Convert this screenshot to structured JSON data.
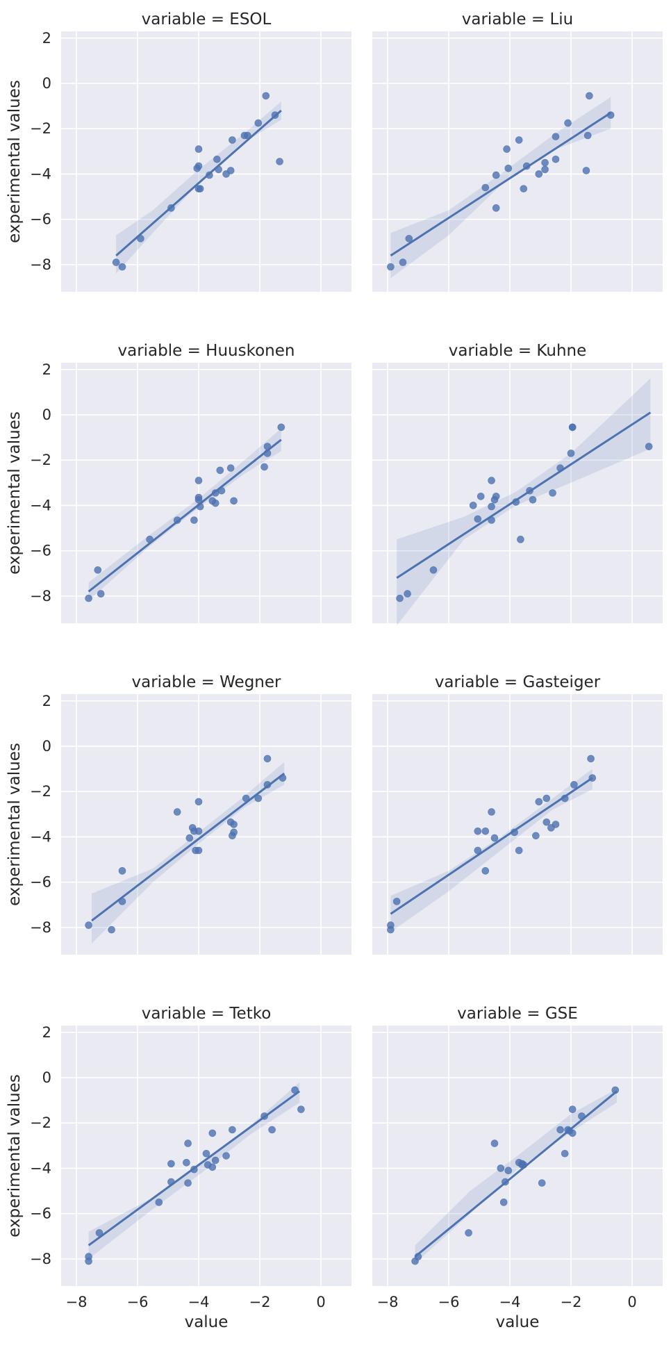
{
  "chart_data": {
    "type": "scatter",
    "layout": "facet-grid",
    "ncols": 2,
    "x_label": "value",
    "y_label": "experimental values",
    "xlim": [
      -8.5,
      1.0
    ],
    "ylim": [
      -9.2,
      2.3
    ],
    "x_ticks": [
      -8,
      -6,
      -4,
      -2,
      0
    ],
    "y_ticks": [
      2,
      0,
      -2,
      -4,
      -6,
      -8
    ],
    "grid": true,
    "color": "#4c72b0",
    "facet_bg": "#eaeaf2",
    "facets": [
      {
        "title": "variable = ESOL",
        "fit": {
          "x": [
            -6.7,
            -1.3
          ],
          "y": [
            -7.6,
            -1.2
          ]
        },
        "ci": {
          "x": [
            -6.7,
            -5.5,
            -4.0,
            -2.5,
            -1.3
          ],
          "lower": [
            -8.4,
            -6.6,
            -4.4,
            -2.6,
            -1.6
          ],
          "upper": [
            -6.7,
            -5.6,
            -3.8,
            -2.2,
            -0.8
          ]
        },
        "points": [
          [
            -6.7,
            -7.9
          ],
          [
            -6.5,
            -8.1
          ],
          [
            -5.9,
            -6.85
          ],
          [
            -4.9,
            -5.5
          ],
          [
            -4.05,
            -3.75
          ],
          [
            -4.0,
            -3.65
          ],
          [
            -4.0,
            -4.65
          ],
          [
            -4.0,
            -2.9
          ],
          [
            -3.65,
            -4.05
          ],
          [
            -3.4,
            -3.35
          ],
          [
            -3.35,
            -3.8
          ],
          [
            -3.1,
            -4.0
          ],
          [
            -2.95,
            -3.85
          ],
          [
            -2.9,
            -2.5
          ],
          [
            -2.5,
            -2.3
          ],
          [
            -2.4,
            -2.3
          ],
          [
            -2.05,
            -1.75
          ],
          [
            -1.8,
            -0.55
          ],
          [
            -1.5,
            -1.4
          ],
          [
            -1.35,
            -3.45
          ],
          [
            -3.95,
            -4.65
          ]
        ]
      },
      {
        "title": "variable = Liu",
        "fit": {
          "x": [
            -7.9,
            -0.7
          ],
          "y": [
            -7.6,
            -1.3
          ]
        },
        "ci": {
          "x": [
            -7.9,
            -6.0,
            -4.3,
            -2.5,
            -0.7
          ],
          "lower": [
            -8.6,
            -6.7,
            -4.5,
            -2.9,
            -2.0
          ],
          "upper": [
            -6.6,
            -5.6,
            -4.0,
            -2.2,
            -0.6
          ]
        },
        "points": [
          [
            -7.9,
            -8.1
          ],
          [
            -7.5,
            -7.9
          ],
          [
            -7.3,
            -6.85
          ],
          [
            -4.8,
            -4.6
          ],
          [
            -4.45,
            -5.5
          ],
          [
            -4.45,
            -4.05
          ],
          [
            -4.1,
            -2.9
          ],
          [
            -4.05,
            -3.75
          ],
          [
            -3.7,
            -2.5
          ],
          [
            -3.55,
            -4.65
          ],
          [
            -3.45,
            -3.65
          ],
          [
            -3.05,
            -4.0
          ],
          [
            -2.85,
            -3.5
          ],
          [
            -2.85,
            -3.8
          ],
          [
            -2.5,
            -2.35
          ],
          [
            -2.5,
            -3.35
          ],
          [
            -2.1,
            -1.75
          ],
          [
            -1.5,
            -3.85
          ],
          [
            -1.45,
            -2.3
          ],
          [
            -1.4,
            -0.55
          ],
          [
            -0.7,
            -1.4
          ]
        ]
      },
      {
        "title": "variable = Huuskonen",
        "fit": {
          "x": [
            -7.6,
            -1.3
          ],
          "y": [
            -7.8,
            -1.1
          ]
        },
        "ci": {
          "x": [
            -7.6,
            -5.6,
            -4.0,
            -2.5,
            -1.3
          ],
          "lower": [
            -8.2,
            -5.8,
            -4.1,
            -2.6,
            -1.6
          ],
          "upper": [
            -7.4,
            -5.3,
            -3.7,
            -2.0,
            -0.6
          ]
        },
        "points": [
          [
            -7.6,
            -8.1
          ],
          [
            -7.3,
            -6.85
          ],
          [
            -7.2,
            -7.9
          ],
          [
            -5.6,
            -5.5
          ],
          [
            -4.7,
            -4.65
          ],
          [
            -4.15,
            -4.65
          ],
          [
            -4.0,
            -3.75
          ],
          [
            -4.0,
            -3.65
          ],
          [
            -4.0,
            -2.9
          ],
          [
            -3.95,
            -4.05
          ],
          [
            -3.55,
            -3.8
          ],
          [
            -3.45,
            -3.45
          ],
          [
            -3.45,
            -3.9
          ],
          [
            -3.3,
            -2.45
          ],
          [
            -3.25,
            -3.35
          ],
          [
            -2.95,
            -2.35
          ],
          [
            -2.85,
            -3.8
          ],
          [
            -1.85,
            -2.3
          ],
          [
            -1.75,
            -1.4
          ],
          [
            -1.75,
            -1.7
          ],
          [
            -1.3,
            -0.55
          ]
        ]
      },
      {
        "title": "variable = Kuhne",
        "fit": {
          "x": [
            -7.7,
            0.6
          ],
          "y": [
            -7.2,
            0.1
          ]
        },
        "ci": {
          "x": [
            -7.7,
            -5.5,
            -3.8,
            -2.0,
            0.6
          ],
          "lower": [
            -9.3,
            -5.5,
            -4.0,
            -3.0,
            -1.5
          ],
          "upper": [
            -5.5,
            -4.5,
            -3.4,
            -1.7,
            1.6
          ]
        },
        "points": [
          [
            -7.6,
            -8.1
          ],
          [
            -7.35,
            -7.9
          ],
          [
            -6.5,
            -6.85
          ],
          [
            -5.2,
            -4.0
          ],
          [
            -5.05,
            -4.6
          ],
          [
            -4.95,
            -3.6
          ],
          [
            -4.6,
            -2.9
          ],
          [
            -4.6,
            -4.05
          ],
          [
            -4.6,
            -4.65
          ],
          [
            -4.5,
            -3.75
          ],
          [
            -4.45,
            -3.6
          ],
          [
            -3.8,
            -3.85
          ],
          [
            -3.65,
            -5.5
          ],
          [
            -3.35,
            -3.35
          ],
          [
            -3.25,
            -3.75
          ],
          [
            -2.35,
            -2.35
          ],
          [
            -2.6,
            -3.45
          ],
          [
            -2.0,
            -1.7
          ],
          [
            -1.95,
            -0.55
          ],
          [
            -1.95,
            -0.55
          ],
          [
            0.55,
            -1.4
          ]
        ]
      },
      {
        "title": "variable = Wegner",
        "fit": {
          "x": [
            -7.5,
            -1.2
          ],
          "y": [
            -7.7,
            -1.2
          ]
        },
        "ci": {
          "x": [
            -7.5,
            -5.5,
            -4.0,
            -2.5,
            -1.2
          ],
          "lower": [
            -8.7,
            -6.0,
            -4.3,
            -2.7,
            -1.7
          ],
          "upper": [
            -6.5,
            -5.4,
            -3.8,
            -2.2,
            -0.7
          ]
        },
        "points": [
          [
            -7.6,
            -7.9
          ],
          [
            -6.85,
            -8.1
          ],
          [
            -6.5,
            -5.5
          ],
          [
            -6.5,
            -6.85
          ],
          [
            -4.7,
            -2.9
          ],
          [
            -4.3,
            -4.05
          ],
          [
            -4.2,
            -3.6
          ],
          [
            -4.15,
            -3.75
          ],
          [
            -4.1,
            -4.6
          ],
          [
            -4.0,
            -3.75
          ],
          [
            -4.0,
            -2.45
          ],
          [
            -4.0,
            -4.6
          ],
          [
            -2.95,
            -3.35
          ],
          [
            -2.85,
            -3.45
          ],
          [
            -2.9,
            -3.95
          ],
          [
            -2.85,
            -3.8
          ],
          [
            -2.45,
            -2.3
          ],
          [
            -2.05,
            -2.3
          ],
          [
            -1.75,
            -1.7
          ],
          [
            -1.75,
            -0.55
          ],
          [
            -1.25,
            -1.4
          ]
        ]
      },
      {
        "title": "variable = Gasteiger",
        "fit": {
          "x": [
            -7.9,
            -1.3
          ],
          "y": [
            -7.4,
            -1.4
          ]
        },
        "ci": {
          "x": [
            -7.9,
            -6.0,
            -4.3,
            -2.6,
            -1.3
          ],
          "lower": [
            -8.2,
            -6.4,
            -4.6,
            -2.8,
            -1.9
          ],
          "upper": [
            -6.6,
            -5.5,
            -4.0,
            -2.3,
            -1.0
          ]
        },
        "points": [
          [
            -7.9,
            -7.9
          ],
          [
            -7.9,
            -8.1
          ],
          [
            -7.7,
            -6.85
          ],
          [
            -5.05,
            -4.6
          ],
          [
            -5.05,
            -3.75
          ],
          [
            -4.8,
            -3.75
          ],
          [
            -4.8,
            -5.5
          ],
          [
            -4.6,
            -2.9
          ],
          [
            -4.5,
            -4.05
          ],
          [
            -3.85,
            -3.8
          ],
          [
            -3.7,
            -4.6
          ],
          [
            -3.15,
            -3.95
          ],
          [
            -3.05,
            -2.45
          ],
          [
            -2.8,
            -2.3
          ],
          [
            -2.8,
            -3.35
          ],
          [
            -2.65,
            -3.6
          ],
          [
            -2.5,
            -3.45
          ],
          [
            -2.2,
            -2.3
          ],
          [
            -1.9,
            -1.7
          ],
          [
            -1.35,
            -0.55
          ],
          [
            -1.3,
            -1.4
          ]
        ]
      },
      {
        "title": "variable = Tetko",
        "fit": {
          "x": [
            -7.6,
            -0.7
          ],
          "y": [
            -7.4,
            -0.6
          ]
        },
        "ci": {
          "x": [
            -7.6,
            -5.5,
            -4.0,
            -2.3,
            -0.7
          ],
          "lower": [
            -8.0,
            -5.8,
            -4.3,
            -2.5,
            -1.1
          ],
          "upper": [
            -6.8,
            -5.3,
            -3.9,
            -2.1,
            -0.2
          ]
        },
        "points": [
          [
            -7.6,
            -8.1
          ],
          [
            -7.6,
            -7.9
          ],
          [
            -7.25,
            -6.85
          ],
          [
            -5.3,
            -5.5
          ],
          [
            -4.9,
            -4.6
          ],
          [
            -4.9,
            -3.8
          ],
          [
            -4.4,
            -3.75
          ],
          [
            -4.35,
            -2.9
          ],
          [
            -4.35,
            -4.65
          ],
          [
            -4.15,
            -4.05
          ],
          [
            -3.75,
            -3.35
          ],
          [
            -3.7,
            -3.85
          ],
          [
            -3.55,
            -3.95
          ],
          [
            -3.55,
            -2.45
          ],
          [
            -3.45,
            -3.65
          ],
          [
            -3.1,
            -3.45
          ],
          [
            -2.9,
            -2.3
          ],
          [
            -1.85,
            -1.7
          ],
          [
            -1.6,
            -2.3
          ],
          [
            -0.85,
            -0.55
          ],
          [
            -0.65,
            -1.4
          ]
        ]
      },
      {
        "title": "variable = GSE",
        "fit": {
          "x": [
            -7.1,
            -0.5
          ],
          "y": [
            -7.9,
            -0.6
          ]
        },
        "ci": {
          "x": [
            -7.1,
            -5.3,
            -3.8,
            -2.0,
            -0.5
          ],
          "lower": [
            -8.2,
            -6.0,
            -4.1,
            -2.4,
            -1.1
          ],
          "upper": [
            -7.4,
            -5.0,
            -3.5,
            -1.6,
            -0.5
          ]
        },
        "points": [
          [
            -7.1,
            -8.1
          ],
          [
            -7.0,
            -7.9
          ],
          [
            -5.35,
            -6.85
          ],
          [
            -4.5,
            -2.9
          ],
          [
            -4.3,
            -4.0
          ],
          [
            -4.2,
            -5.5
          ],
          [
            -4.15,
            -4.6
          ],
          [
            -4.05,
            -4.1
          ],
          [
            -3.7,
            -3.75
          ],
          [
            -3.6,
            -3.8
          ],
          [
            -3.55,
            -3.85
          ],
          [
            -2.95,
            -4.65
          ],
          [
            -2.35,
            -2.3
          ],
          [
            -2.2,
            -3.35
          ],
          [
            -2.1,
            -2.3
          ],
          [
            -1.95,
            -2.45
          ],
          [
            -1.95,
            -1.4
          ],
          [
            -1.65,
            -1.7
          ],
          [
            -0.55,
            -0.55
          ],
          [
            -2.05,
            -2.35
          ],
          [
            -3.6,
            -3.85
          ]
        ]
      }
    ]
  }
}
